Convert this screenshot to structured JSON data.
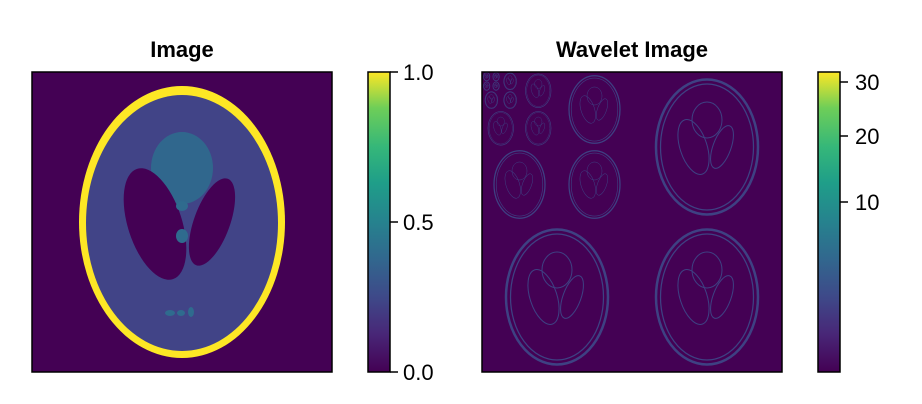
{
  "chart_data": [
    {
      "type": "heatmap",
      "title": "Image",
      "xlabel": "",
      "ylabel": "",
      "colormap": "viridis",
      "colorbar": {
        "ticks": [
          0.0,
          0.5,
          1.0
        ],
        "tick_labels": [
          "0.0",
          "0.5",
          "1.0"
        ],
        "range": [
          0.0,
          1.0
        ]
      },
      "content": "Shepp-Logan phantom",
      "values": {
        "background": 0.0,
        "outer_skull_ring": 1.0,
        "brain": 0.2,
        "ventricles": 0.0,
        "central_blob": 0.3,
        "small_spots": 0.3
      }
    },
    {
      "type": "heatmap",
      "title": "Wavelet Image",
      "xlabel": "",
      "ylabel": "",
      "colormap": "viridis",
      "colorbar": {
        "ticks": [
          10,
          20,
          30
        ],
        "tick_labels": [
          "10",
          "20",
          "30"
        ],
        "range": [
          0,
          31
        ],
        "scale": "nonlinear"
      },
      "content": "multi-level wavelet decomposition of the phantom"
    }
  ],
  "colors": {
    "background": "#ffffff",
    "viridis_low": "#440154",
    "viridis_mid": "#21908d",
    "viridis_high": "#fde725",
    "frame": "#000000"
  }
}
